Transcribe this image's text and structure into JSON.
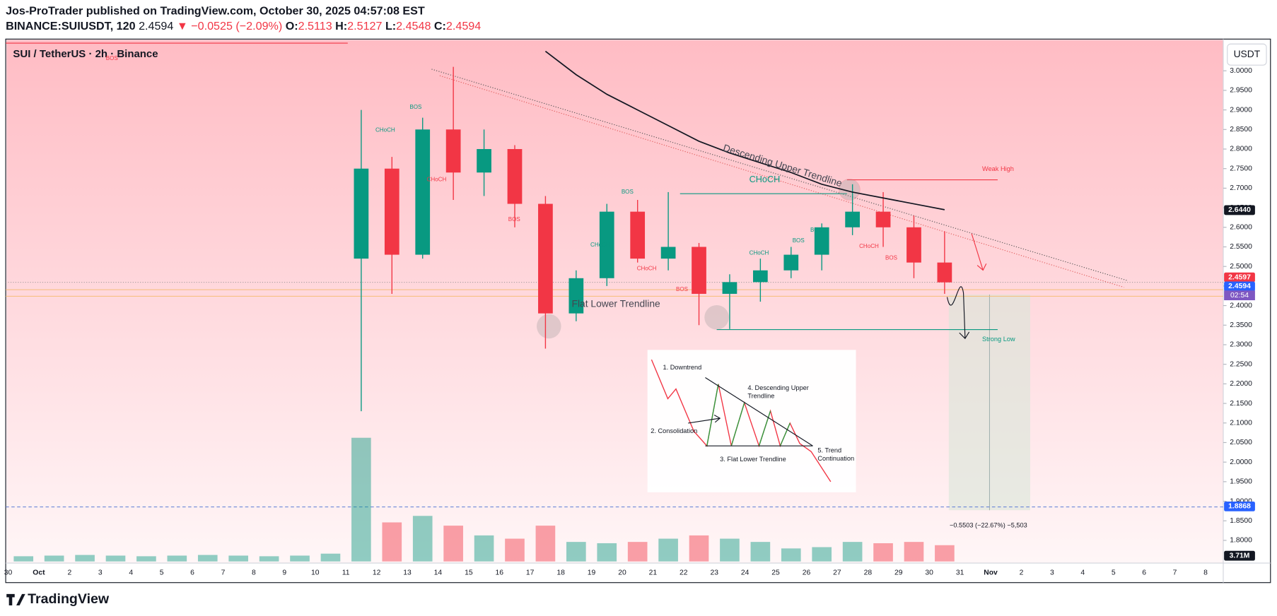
{
  "header": {
    "title": "Jos-ProTrader published on TradingView.com, October 30, 2025 04:57:08 EST",
    "symbol": "BINANCE:SUIUSDT, 120",
    "last": "2.4594",
    "change": "▼ −0.0525 (−2.09%)",
    "ohlc": [
      {
        "key": "O:",
        "value": "2.5113"
      },
      {
        "key": "H:",
        "value": "2.5127"
      },
      {
        "key": "L:",
        "value": "2.4548"
      },
      {
        "key": "C:",
        "value": "2.4594"
      }
    ]
  },
  "footer": {
    "logo": "TradingView"
  },
  "chart_data": {
    "type": "candlestick",
    "title": "SUI / TetherUS · 2h · Binance",
    "currency": "USDT",
    "categories": [
      "30",
      "Oct",
      "2",
      "3",
      "4",
      "5",
      "6",
      "7",
      "8",
      "9",
      "10",
      "11",
      "12",
      "13",
      "14",
      "15",
      "16",
      "17",
      "18",
      "19",
      "20",
      "21",
      "22",
      "23",
      "24",
      "25",
      "26",
      "27",
      "28",
      "29",
      "30",
      "31",
      "Nov",
      "2",
      "3",
      "4",
      "5",
      "6",
      "7",
      "8"
    ],
    "up_color": "#089981",
    "down_color": "#f23645",
    "open": [
      null,
      null,
      null,
      null,
      null,
      null,
      null,
      null,
      null,
      null,
      null,
      2.52,
      2.75,
      2.53,
      2.85,
      2.74,
      2.8,
      2.66,
      2.38,
      2.47,
      2.64,
      2.52,
      2.55,
      2.43,
      2.46,
      2.49,
      2.53,
      2.6,
      2.64,
      2.6,
      2.51,
      null,
      null,
      null,
      null,
      null,
      null,
      null,
      null,
      null
    ],
    "high": [
      null,
      null,
      null,
      null,
      null,
      null,
      null,
      null,
      null,
      null,
      null,
      2.9,
      2.78,
      2.88,
      3.01,
      2.85,
      2.81,
      2.68,
      2.49,
      2.66,
      2.67,
      2.69,
      2.56,
      2.48,
      2.52,
      2.55,
      2.61,
      2.71,
      2.69,
      2.63,
      2.59,
      null,
      null,
      null,
      null,
      null,
      null,
      null,
      null,
      null
    ],
    "low": [
      null,
      null,
      null,
      null,
      null,
      null,
      null,
      null,
      null,
      null,
      null,
      2.13,
      2.43,
      2.52,
      2.67,
      2.68,
      2.6,
      2.29,
      2.36,
      2.45,
      2.51,
      2.49,
      2.35,
      2.34,
      2.41,
      2.47,
      2.49,
      2.58,
      2.55,
      2.47,
      2.43,
      null,
      null,
      null,
      null,
      null,
      null,
      null,
      null,
      null
    ],
    "close": [
      null,
      null,
      null,
      null,
      null,
      null,
      null,
      null,
      null,
      null,
      null,
      2.75,
      2.53,
      2.85,
      2.74,
      2.8,
      2.66,
      2.38,
      2.47,
      2.64,
      2.52,
      2.55,
      2.43,
      2.46,
      2.49,
      2.53,
      2.6,
      2.64,
      2.6,
      2.51,
      2.4594,
      null,
      null,
      null,
      null,
      null,
      null,
      null,
      null,
      null
    ],
    "moving_average": {
      "color": "#131722",
      "values": [
        null,
        null,
        null,
        null,
        null,
        null,
        null,
        null,
        null,
        null,
        null,
        null,
        null,
        null,
        null,
        null,
        null,
        3.05,
        2.99,
        2.94,
        2.9,
        2.86,
        2.82,
        2.79,
        2.765,
        2.74,
        2.71,
        2.69,
        2.675,
        2.66,
        2.645,
        null,
        null,
        null,
        null,
        null,
        null,
        null,
        null,
        null
      ]
    },
    "volume": {
      "ylim": [
        0,
        200
      ],
      "values": [
        8,
        9,
        10,
        9,
        8,
        9,
        10,
        9,
        8,
        9,
        12,
        190,
        60,
        70,
        55,
        40,
        35,
        55,
        30,
        28,
        30,
        35,
        40,
        35,
        30,
        20,
        22,
        30,
        28,
        30,
        25,
        null,
        null,
        null,
        null,
        null,
        null,
        null,
        null,
        null
      ],
      "tag": "3.71M"
    },
    "ylim": [
      1.742,
      3.081
    ],
    "yticks": [
      {
        "value": 1.8,
        "label": "1.8000"
      },
      {
        "value": 1.85,
        "label": "1.8500"
      },
      {
        "value": 1.9,
        "label": "1.9000"
      },
      {
        "value": 1.95,
        "label": "1.9500"
      },
      {
        "value": 2.0,
        "label": "2.0000"
      },
      {
        "value": 2.05,
        "label": "2.0500"
      },
      {
        "value": 2.1,
        "label": "2.1000"
      },
      {
        "value": 2.15,
        "label": "2.1500"
      },
      {
        "value": 2.2,
        "label": "2.2000"
      },
      {
        "value": 2.25,
        "label": "2.2500"
      },
      {
        "value": 2.3,
        "label": "2.3000"
      },
      {
        "value": 2.35,
        "label": "2.3500"
      },
      {
        "value": 2.4,
        "label": "2.4000"
      },
      {
        "value": 2.45,
        "label": "2.4500"
      },
      {
        "value": 2.5,
        "label": "2.5000"
      },
      {
        "value": 2.55,
        "label": "2.5500"
      },
      {
        "value": 2.6,
        "label": "2.6000"
      },
      {
        "value": 2.65,
        "label": "2.6500"
      },
      {
        "value": 2.7,
        "label": "2.7000"
      },
      {
        "value": 2.75,
        "label": "2.7500"
      },
      {
        "value": 2.8,
        "label": "2.8000"
      },
      {
        "value": 2.85,
        "label": "2.8500"
      },
      {
        "value": 2.9,
        "label": "2.9000"
      },
      {
        "value": 2.95,
        "label": "2.9500"
      },
      {
        "value": 3.0,
        "label": "3.0000"
      }
    ],
    "price_tags": [
      {
        "value": 2.644,
        "label": "2.6440",
        "color": "#131722"
      },
      {
        "value": 2.4597,
        "label": "2.4597",
        "color": "#f23645"
      },
      {
        "value": 2.4594,
        "label": "2.4594",
        "color": "#2962ff"
      },
      {
        "value": 1.8868,
        "label": "1.8868",
        "color": "#2962ff"
      }
    ],
    "countdown": "02:54",
    "annotations": [
      "Descending Upper Trendline",
      "Flat Lower Trendline",
      "Weak High",
      "Strong Low",
      "CHoCH",
      "−0.5503 (−22.67%) −5,503"
    ],
    "structure_labels": [
      "BOS",
      "CHoCH",
      "CHoCH",
      "BOS",
      "BOS",
      "CHoCH",
      "CHoCH",
      "BOS",
      "CHoCH",
      "BOS",
      "BOS",
      "CHoCH",
      "BOS",
      "BOS"
    ],
    "inset": [
      "1. Downtrend",
      "2. Consolidation",
      "3. Flat Lower Trendline",
      "4. Descending Upper",
      "Trendline",
      "5. Trend",
      "Continuation"
    ]
  }
}
